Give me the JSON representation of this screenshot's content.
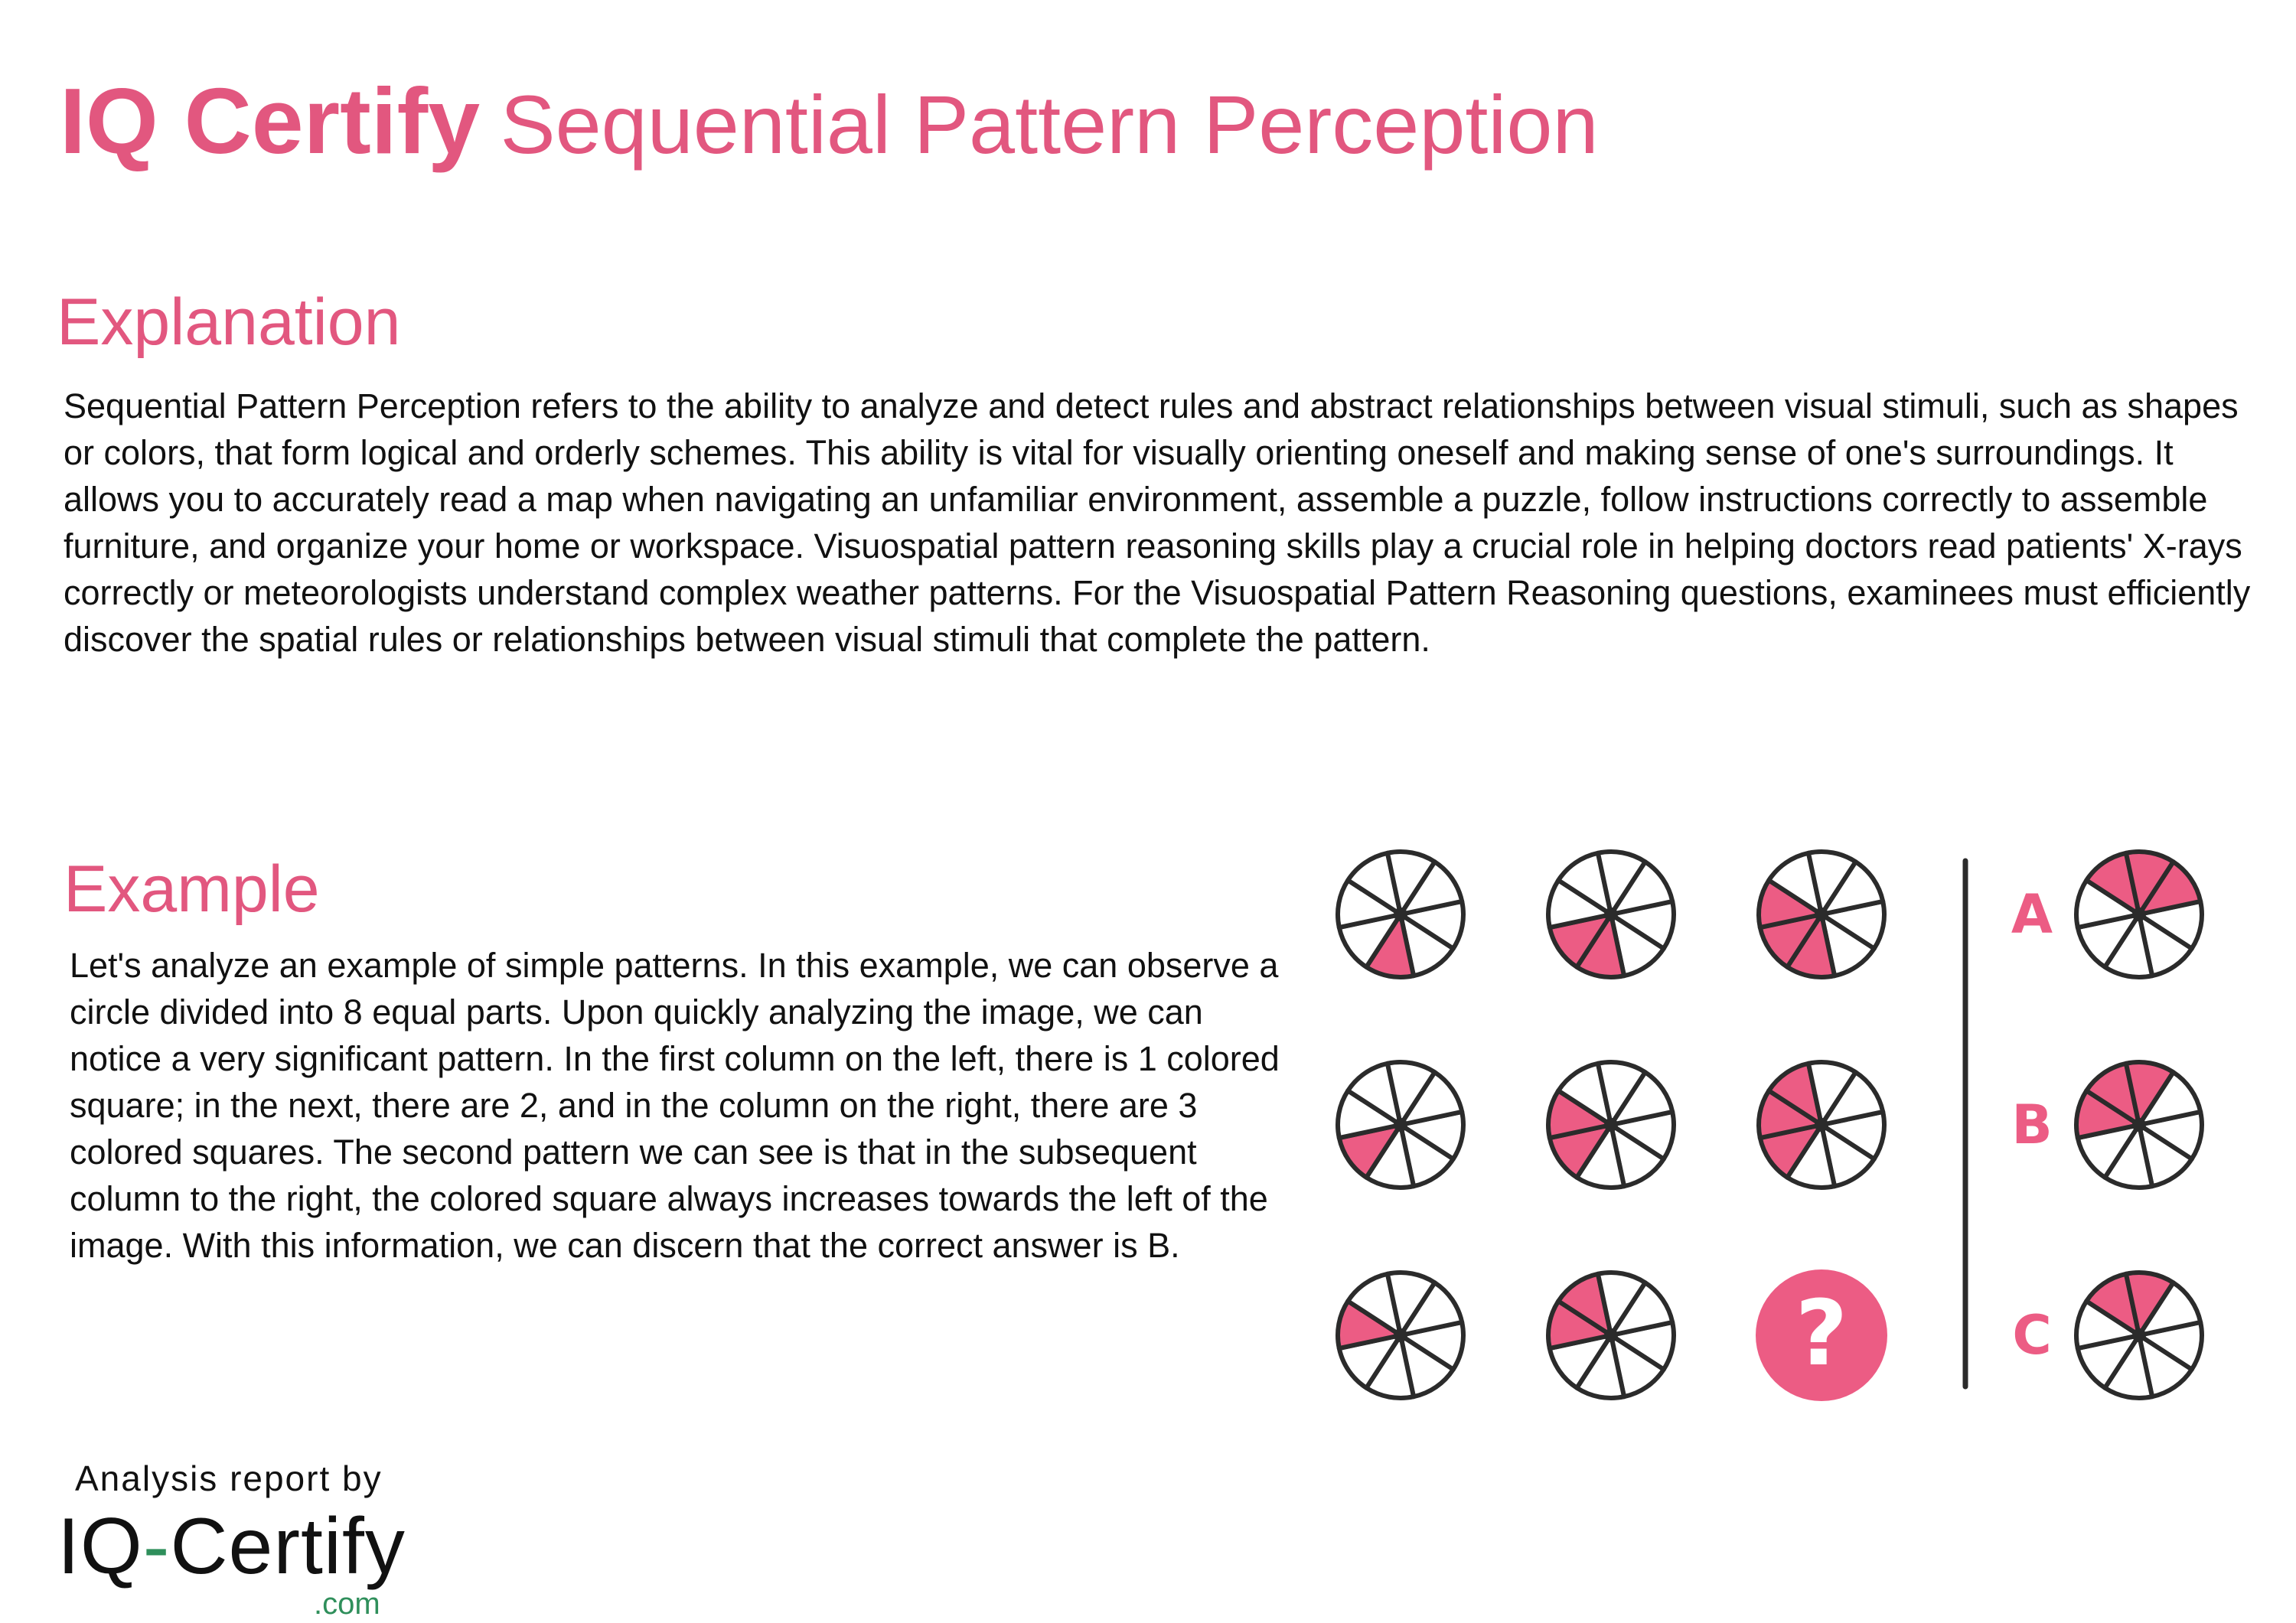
{
  "header": {
    "brand": "IQ Certify",
    "title": "Sequential Pattern Perception"
  },
  "explanation": {
    "heading": "Explanation",
    "text": "Sequential Pattern Perception refers to the ability to analyze and detect rules and abstract relationships between visual stimuli, such as shapes or colors, that form logical and orderly schemes. This ability is vital for visually orienting oneself and making sense of one's surroundings. It allows you to accurately read a map when navigating an unfamiliar environment, assemble a puzzle, follow instructions correctly to assemble furniture, and organize your home or workspace. Visuospatial pattern reasoning skills play a crucial role in helping doctors read patients' X-rays correctly or meteorologists understand complex weather patterns. For the Visuospatial Pattern Reasoning questions, examinees must efficiently discover the spatial rules or relationships between visual stimuli that complete the pattern."
  },
  "example": {
    "heading": "Example",
    "text": "Let's analyze an example of simple patterns. In this example, we can observe a circle divided into 8 equal parts. Upon quickly analyzing the image, we can notice a very significant pattern. In the first column on the left, there is 1 colored square; in the next, there are 2, and in the column on the right, there are 3 colored squares. The second pattern we can see is that in the subsequent column to the right, the colored square always increases towards the left of the image. With this information, we can discern that the correct answer is B."
  },
  "puzzle": {
    "accent_color": "#ec5c84",
    "stroke_color": "#2b2b2b",
    "segments_per_circle": 8,
    "grid": [
      [
        [
          2
        ],
        [
          2,
          3
        ],
        [
          2,
          3,
          4
        ]
      ],
      [
        [
          3
        ],
        [
          3,
          4
        ],
        [
          3,
          4,
          5
        ]
      ],
      [
        [
          4
        ],
        [
          4,
          5
        ],
        null
      ]
    ],
    "missing_symbol": "?",
    "options": [
      {
        "label": "A",
        "filled": [
          5,
          6,
          7
        ]
      },
      {
        "label": "B",
        "filled": [
          4,
          5,
          6
        ]
      },
      {
        "label": "C",
        "filled": [
          5,
          6
        ]
      }
    ]
  },
  "footer": {
    "caption": "Analysis report by",
    "logo_left": "IQ",
    "logo_dash": "-",
    "logo_right": "Certify",
    "logo_domain": ".com"
  }
}
